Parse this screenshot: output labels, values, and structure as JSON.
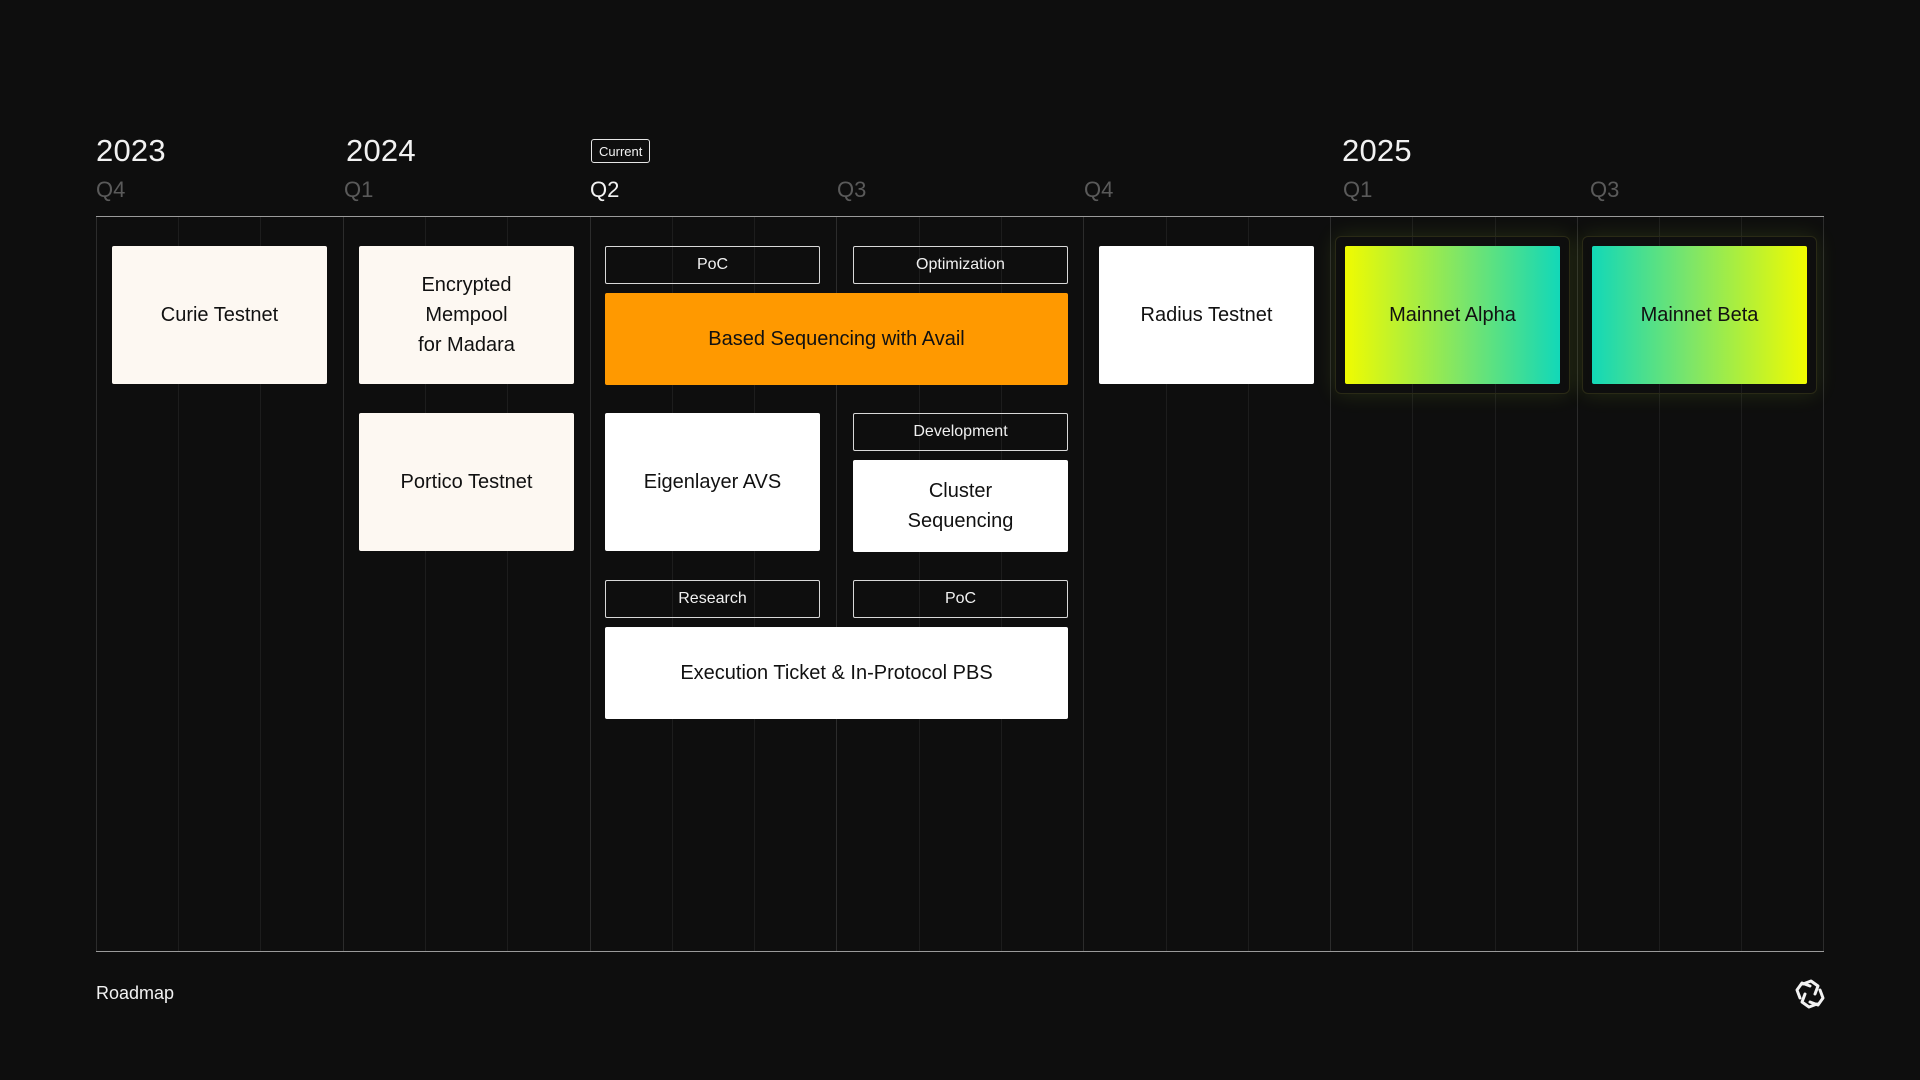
{
  "header": {
    "years": {
      "y2023": "2023",
      "y2024": "2024",
      "y2025": "2025"
    },
    "quarters": {
      "q_2023_4": "Q4",
      "q_2024_1": "Q1",
      "q_2024_2": "Q2",
      "q_2024_3": "Q3",
      "q_2024_4": "Q4",
      "q_2025_1": "Q1",
      "q_2025_3": "Q3"
    },
    "current_badge": "Current"
  },
  "cards": {
    "curie_testnet": "Curie Testnet",
    "encrypted_mempool": {
      "line1": "Encrypted",
      "line2": "Mempool",
      "line3": "for Madara"
    },
    "portico_testnet": "Portico Testnet",
    "based_sequencing": "Based Sequencing with Avail",
    "eigenlayer_avs": "Eigenlayer AVS",
    "cluster_sequencing": {
      "line1": "Cluster",
      "line2": "Sequencing"
    },
    "execution_ticket": "Execution Ticket & In-Protocol PBS",
    "radius_testnet": "Radius Testnet",
    "mainnet_alpha": "Mainnet Alpha",
    "mainnet_beta": "Mainnet Beta"
  },
  "tags": {
    "poc_1": "PoC",
    "optimization": "Optimization",
    "development": "Development",
    "research": "Research",
    "poc_2": "PoC"
  },
  "footer": {
    "label": "Roadmap",
    "logo_icon": "knot-logo-icon"
  },
  "colors": {
    "background": "#0e0e0e",
    "cream": "#fdf8f2",
    "orange": "#ff9900",
    "gradient_yellow": "#f0fb00",
    "gradient_teal": "#12d8b8"
  }
}
